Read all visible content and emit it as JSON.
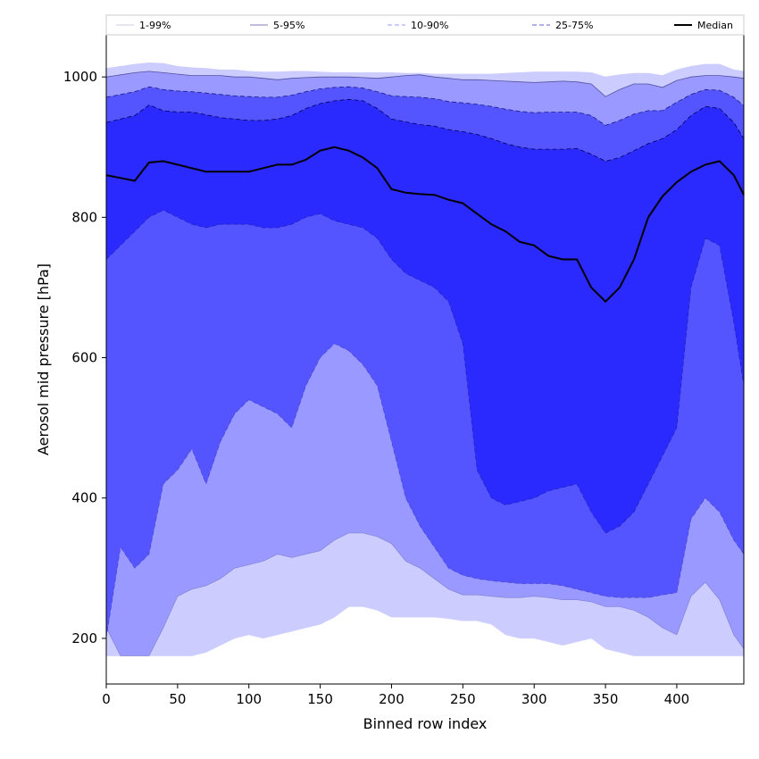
{
  "chart_data": {
    "type": "area",
    "xlabel": "Binned row index",
    "ylabel": "Aerosol mid pressure [hPa]",
    "xlim": [
      0,
      447
    ],
    "ylim": [
      135,
      1060
    ],
    "x_ticks": [
      0,
      50,
      100,
      150,
      200,
      250,
      300,
      350,
      400
    ],
    "y_ticks": [
      200,
      400,
      600,
      800,
      1000
    ],
    "grid": false,
    "legend_placement": "top, spanning plot width",
    "x": [
      0,
      10,
      20,
      30,
      40,
      50,
      60,
      70,
      80,
      90,
      100,
      110,
      120,
      130,
      140,
      150,
      160,
      170,
      180,
      190,
      200,
      210,
      220,
      230,
      240,
      250,
      260,
      270,
      280,
      290,
      300,
      310,
      320,
      330,
      340,
      350,
      360,
      370,
      380,
      390,
      400,
      410,
      420,
      430,
      440,
      447
    ],
    "bands": [
      {
        "name": "1-99%",
        "color": "#ccccff",
        "line_color": "#ccccff",
        "line_style": "solid",
        "lower": [
          175,
          175,
          175,
          175,
          175,
          175,
          175,
          180,
          190,
          200,
          205,
          200,
          205,
          210,
          215,
          220,
          230,
          245,
          245,
          240,
          230,
          230,
          230,
          230,
          228,
          225,
          225,
          220,
          205,
          200,
          200,
          195,
          190,
          195,
          200,
          185,
          180,
          175,
          175,
          175,
          175,
          175,
          175,
          175,
          175,
          175
        ],
        "upper": [
          1012,
          1015,
          1018,
          1020,
          1019,
          1015,
          1013,
          1012,
          1010,
          1010,
          1008,
          1007,
          1007,
          1008,
          1008,
          1007,
          1006,
          1006,
          1006,
          1006,
          1006,
          1005,
          1005,
          1004,
          1004,
          1004,
          1004,
          1004,
          1005,
          1006,
          1007,
          1007,
          1007,
          1007,
          1006,
          1000,
          1003,
          1005,
          1005,
          1002,
          1010,
          1015,
          1018,
          1018,
          1010,
          1008
        ]
      },
      {
        "name": "5-95%",
        "color": "#9999ff",
        "line_color": "#5050a0",
        "line_style": "solid",
        "lower": [
          215,
          175,
          175,
          175,
          215,
          260,
          270,
          275,
          285,
          300,
          305,
          310,
          320,
          315,
          320,
          325,
          340,
          350,
          350,
          345,
          335,
          310,
          300,
          285,
          270,
          262,
          262,
          260,
          258,
          258,
          260,
          258,
          255,
          255,
          252,
          245,
          245,
          240,
          230,
          215,
          205,
          260,
          280,
          255,
          205,
          185
        ],
        "upper": [
          1000,
          1003,
          1006,
          1008,
          1006,
          1004,
          1002,
          1002,
          1002,
          1000,
          1000,
          998,
          996,
          998,
          999,
          1000,
          1000,
          1000,
          999,
          998,
          1000,
          1002,
          1003,
          1000,
          998,
          996,
          996,
          995,
          994,
          993,
          992,
          993,
          994,
          993,
          990,
          972,
          982,
          990,
          990,
          985,
          995,
          1000,
          1002,
          1002,
          1000,
          998
        ]
      },
      {
        "name": "10-90%",
        "color": "#5555ff",
        "line_color": "#1a1a80",
        "line_style": "dashed",
        "lower": [
          200,
          330,
          300,
          320,
          420,
          440,
          470,
          420,
          480,
          520,
          540,
          530,
          520,
          500,
          560,
          600,
          620,
          610,
          590,
          560,
          480,
          400,
          360,
          330,
          300,
          290,
          285,
          282,
          280,
          278,
          278,
          278,
          275,
          270,
          265,
          260,
          258,
          258,
          258,
          262,
          265,
          370,
          400,
          380,
          340,
          320
        ]
      },
      {
        "name": "25-75%",
        "color": "#2a2aff",
        "line_color": "#000055",
        "line_style": "dashed",
        "lower": [
          740,
          760,
          780,
          800,
          810,
          800,
          790,
          785,
          790,
          790,
          790,
          785,
          785,
          790,
          800,
          805,
          795,
          790,
          785,
          770,
          740,
          720,
          710,
          700,
          680,
          620,
          440,
          400,
          390,
          395,
          400,
          410,
          415,
          420,
          380,
          350,
          360,
          380,
          420,
          460,
          500,
          700,
          770,
          760,
          650,
          560
        ],
        "upper": [
          935,
          940,
          945,
          960,
          952,
          950,
          950,
          946,
          942,
          940,
          938,
          938,
          940,
          945,
          955,
          962,
          966,
          968,
          966,
          955,
          940,
          936,
          932,
          930,
          925,
          922,
          918,
          912,
          905,
          900,
          897,
          897,
          897,
          898,
          890,
          880,
          885,
          895,
          905,
          912,
          925,
          945,
          958,
          955,
          935,
          912
        ]
      }
    ],
    "series": [
      {
        "name": "Median",
        "color": "#000000",
        "values": [
          860,
          856,
          852,
          878,
          880,
          875,
          870,
          865,
          865,
          865,
          865,
          870,
          875,
          875,
          882,
          895,
          900,
          895,
          885,
          870,
          840,
          835,
          833,
          832,
          825,
          820,
          805,
          790,
          780,
          765,
          760,
          745,
          740,
          740,
          700,
          680,
          700,
          740,
          800,
          830,
          850,
          865,
          875,
          880,
          860,
          832
        ]
      }
    ]
  }
}
